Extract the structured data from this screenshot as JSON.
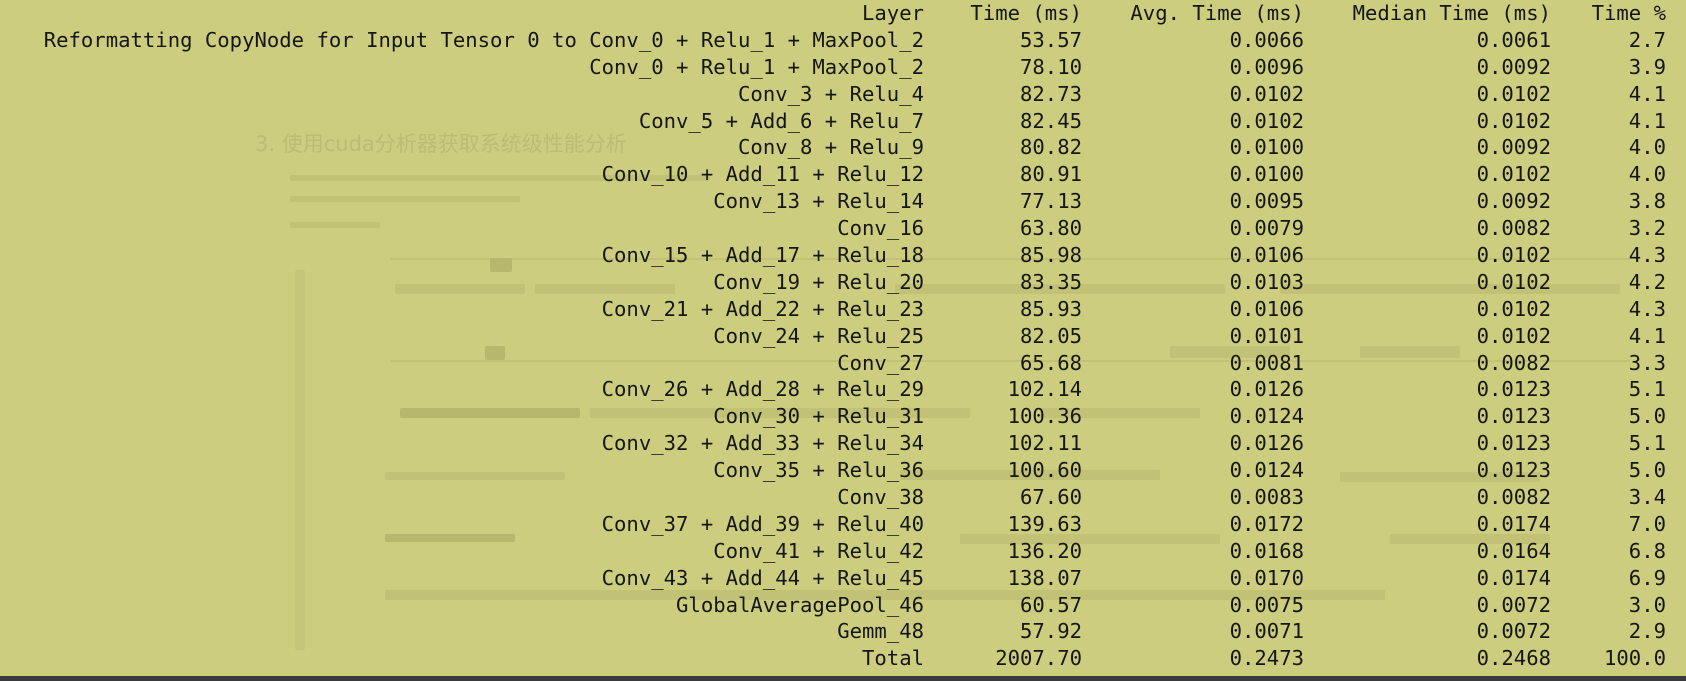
{
  "ghost_heading": "3. 使用cuda分析器获取系统级性能分析",
  "table": {
    "header": {
      "layer": "Layer",
      "time": "Time (ms)",
      "avg": "Avg. Time (ms)",
      "median": "Median Time (ms)",
      "pct": "Time %"
    },
    "rows": [
      {
        "layer": "Reformatting CopyNode for Input Tensor 0 to Conv_0 + Relu_1 + MaxPool_2",
        "time": "53.57",
        "avg": "0.0066",
        "median": "0.0061",
        "pct": "2.7"
      },
      {
        "layer": "Conv_0 + Relu_1 + MaxPool_2",
        "time": "78.10",
        "avg": "0.0096",
        "median": "0.0092",
        "pct": "3.9"
      },
      {
        "layer": "Conv_3 + Relu_4",
        "time": "82.73",
        "avg": "0.0102",
        "median": "0.0102",
        "pct": "4.1"
      },
      {
        "layer": "Conv_5 + Add_6 + Relu_7",
        "time": "82.45",
        "avg": "0.0102",
        "median": "0.0102",
        "pct": "4.1"
      },
      {
        "layer": "Conv_8 + Relu_9",
        "time": "80.82",
        "avg": "0.0100",
        "median": "0.0092",
        "pct": "4.0"
      },
      {
        "layer": "Conv_10 + Add_11 + Relu_12",
        "time": "80.91",
        "avg": "0.0100",
        "median": "0.0102",
        "pct": "4.0"
      },
      {
        "layer": "Conv_13 + Relu_14",
        "time": "77.13",
        "avg": "0.0095",
        "median": "0.0092",
        "pct": "3.8"
      },
      {
        "layer": "Conv_16",
        "time": "63.80",
        "avg": "0.0079",
        "median": "0.0082",
        "pct": "3.2"
      },
      {
        "layer": "Conv_15 + Add_17 + Relu_18",
        "time": "85.98",
        "avg": "0.0106",
        "median": "0.0102",
        "pct": "4.3"
      },
      {
        "layer": "Conv_19 + Relu_20",
        "time": "83.35",
        "avg": "0.0103",
        "median": "0.0102",
        "pct": "4.2"
      },
      {
        "layer": "Conv_21 + Add_22 + Relu_23",
        "time": "85.93",
        "avg": "0.0106",
        "median": "0.0102",
        "pct": "4.3"
      },
      {
        "layer": "Conv_24 + Relu_25",
        "time": "82.05",
        "avg": "0.0101",
        "median": "0.0102",
        "pct": "4.1"
      },
      {
        "layer": "Conv_27",
        "time": "65.68",
        "avg": "0.0081",
        "median": "0.0082",
        "pct": "3.3"
      },
      {
        "layer": "Conv_26 + Add_28 + Relu_29",
        "time": "102.14",
        "avg": "0.0126",
        "median": "0.0123",
        "pct": "5.1"
      },
      {
        "layer": "Conv_30 + Relu_31",
        "time": "100.36",
        "avg": "0.0124",
        "median": "0.0123",
        "pct": "5.0"
      },
      {
        "layer": "Conv_32 + Add_33 + Relu_34",
        "time": "102.11",
        "avg": "0.0126",
        "median": "0.0123",
        "pct": "5.1"
      },
      {
        "layer": "Conv_35 + Relu_36",
        "time": "100.60",
        "avg": "0.0124",
        "median": "0.0123",
        "pct": "5.0"
      },
      {
        "layer": "Conv_38",
        "time": "67.60",
        "avg": "0.0083",
        "median": "0.0082",
        "pct": "3.4"
      },
      {
        "layer": "Conv_37 + Add_39 + Relu_40",
        "time": "139.63",
        "avg": "0.0172",
        "median": "0.0174",
        "pct": "7.0"
      },
      {
        "layer": "Conv_41 + Relu_42",
        "time": "136.20",
        "avg": "0.0168",
        "median": "0.0164",
        "pct": "6.8"
      },
      {
        "layer": "Conv_43 + Add_44 + Relu_45",
        "time": "138.07",
        "avg": "0.0170",
        "median": "0.0174",
        "pct": "6.9"
      },
      {
        "layer": "GlobalAveragePool_46",
        "time": "60.57",
        "avg": "0.0075",
        "median": "0.0072",
        "pct": "3.0"
      },
      {
        "layer": "Gemm_48",
        "time": "57.92",
        "avg": "0.0071",
        "median": "0.0072",
        "pct": "2.9"
      },
      {
        "layer": "Total",
        "time": "2007.70",
        "avg": "0.2473",
        "median": "0.2468",
        "pct": "100.0"
      }
    ]
  }
}
